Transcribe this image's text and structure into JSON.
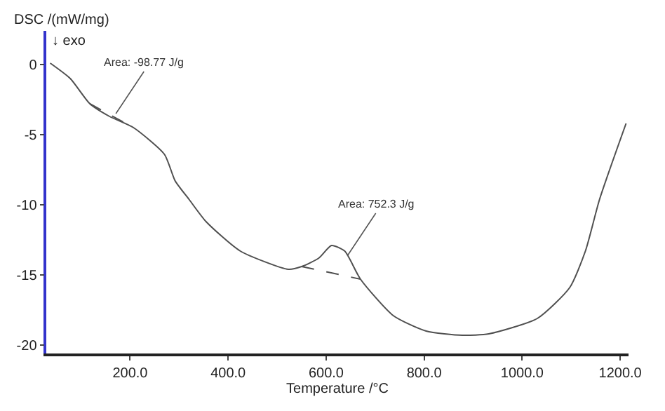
{
  "chart_data": {
    "type": "line",
    "ylabel": "DSC /(mW/mg)",
    "xlabel": "Temperature /°C",
    "xlim": [
      29,
      1217
    ],
    "ylim": [
      -20.6,
      2.4
    ],
    "xticks": [
      {
        "value": 200,
        "label": "200.0"
      },
      {
        "value": 400,
        "label": "400.0"
      },
      {
        "value": 600,
        "label": "600.0"
      },
      {
        "value": 800,
        "label": "800.0"
      },
      {
        "value": 1000,
        "label": "1000.0"
      },
      {
        "value": 1200,
        "label": "1200.0"
      }
    ],
    "yticks": [
      0,
      -5,
      -10,
      -15,
      -20
    ],
    "marker": "none",
    "line_style": "solid",
    "series": [
      {
        "color": "#505050",
        "x": [
          37,
          78,
          118,
          158,
          207,
          270,
          292,
          320,
          355,
          425,
          523,
          550,
          585,
          611,
          638,
          670,
          737,
          804,
          878,
          932,
          1031,
          1097,
          1129,
          1158,
          1212
        ],
        "values": [
          0.1,
          -1.0,
          -2.8,
          -3.7,
          -4.5,
          -6.4,
          -8.3,
          -9.6,
          -11.2,
          -13.3,
          -14.6,
          -14.4,
          -13.8,
          -12.9,
          -13.3,
          -15.3,
          -17.9,
          -19.0,
          -19.3,
          -19.2,
          -18.1,
          -15.9,
          -13.3,
          -9.6,
          -4.2
        ]
      },
      {
        "color": "#505050",
        "line_style": "dashed",
        "x": [
          118,
          207
        ],
        "values": [
          -2.8,
          -4.5
        ]
      },
      {
        "color": "#505050",
        "line_style": "dashed",
        "x": [
          550,
          670
        ],
        "values": [
          -14.4,
          -15.3
        ]
      }
    ],
    "annotations": [
      "↓ exo",
      {
        "text": "Area: -98.77 J/g",
        "x": 171,
        "y": -3.5
      },
      {
        "text": "Area: 752.3 J/g",
        "x": 644,
        "y": -13.6
      }
    ]
  }
}
